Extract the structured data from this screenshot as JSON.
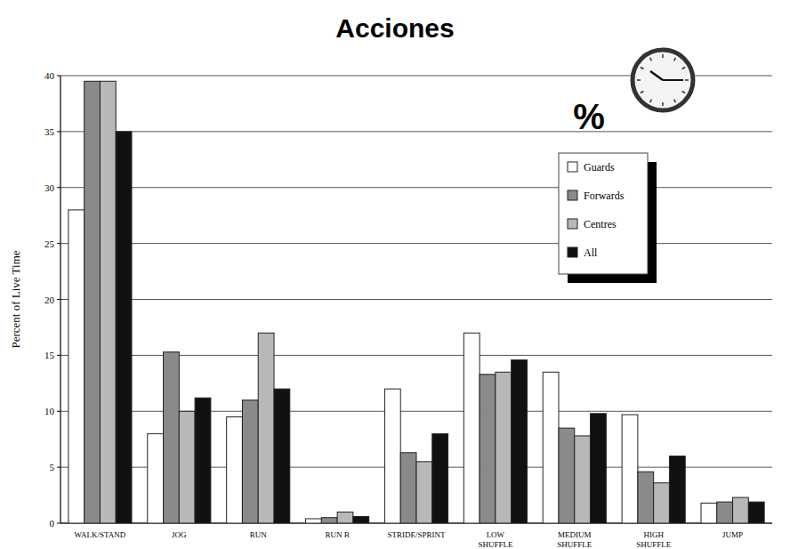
{
  "chart_data": {
    "type": "bar",
    "title": "Acciones",
    "y_label": "Percent of Live Time",
    "annotations": [
      "%"
    ],
    "categories": [
      "WALK/STAND",
      "JOG",
      "RUN",
      "RUN B",
      "STRIDE/SPRINT",
      "LOW SHUFFLE",
      "MEDIUM SHUFFLE",
      "HIGH SHUFFLE",
      "JUMP"
    ],
    "series": [
      {
        "name": "Guards",
        "color": "#ffffff",
        "values": [
          28,
          8,
          9.5,
          0.4,
          12,
          17,
          13.5,
          9.7,
          1.8
        ]
      },
      {
        "name": "Forwards",
        "color": "#8a8a8a",
        "values": [
          39.5,
          15.3,
          11,
          0.5,
          6.3,
          13.3,
          8.5,
          4.6,
          1.9
        ]
      },
      {
        "name": "Centres",
        "color": "#b8b8b8",
        "values": [
          39.5,
          10,
          17,
          1,
          5.5,
          13.5,
          7.8,
          3.6,
          2.3
        ]
      },
      {
        "name": "All",
        "color": "#111111",
        "values": [
          35,
          11.2,
          12,
          0.6,
          8,
          14.6,
          9.8,
          6,
          1.9
        ]
      }
    ],
    "ylim": [
      0,
      40
    ],
    "yticks": [
      0,
      5,
      10,
      15,
      20,
      25,
      30,
      35,
      40
    ],
    "grid": true,
    "legend": "upper right"
  }
}
